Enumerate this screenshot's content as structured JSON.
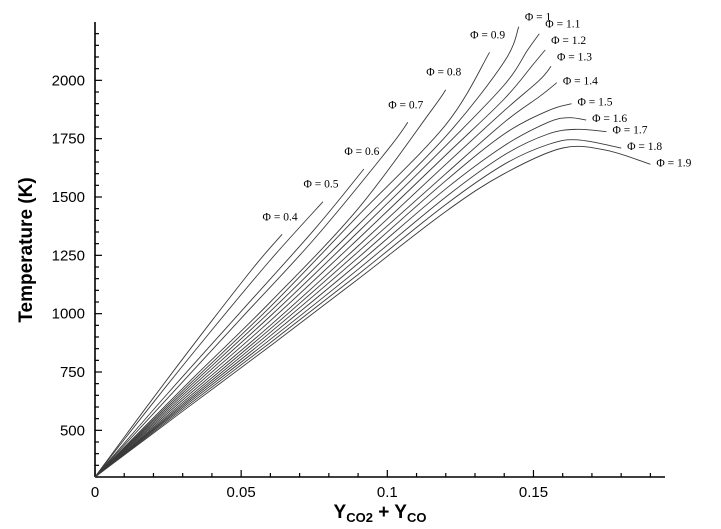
{
  "chart_data": {
    "type": "line",
    "xlabel": "Y",
    "xlabel_sub1": "CO2",
    "xlabel_mid": " + Y",
    "xlabel_sub2": "CO",
    "ylabel": "Temperature (K)",
    "xlim": [
      0,
      0.195
    ],
    "ylim": [
      300,
      2250
    ],
    "x_ticks": [
      0,
      0.05,
      0.1,
      0.15
    ],
    "x_tick_labels": [
      "0",
      "0.05",
      "0.1",
      "0.15"
    ],
    "y_ticks": [
      500,
      750,
      1000,
      1250,
      1500,
      1750,
      2000
    ],
    "y_tick_labels": [
      "500",
      "750",
      "1000",
      "1250",
      "1500",
      "1750",
      "2000"
    ],
    "grid": false,
    "legend": "none",
    "series": [
      {
        "name": "Φ = 0.4",
        "x": [
          0,
          0.02,
          0.04,
          0.055,
          0.064
        ],
        "y": [
          300,
          640,
          970,
          1210,
          1340
        ]
      },
      {
        "name": "Φ = 0.5",
        "x": [
          0,
          0.02,
          0.04,
          0.06,
          0.078
        ],
        "y": [
          300,
          620,
          930,
          1230,
          1480
        ]
      },
      {
        "name": "Φ = 0.6",
        "x": [
          0,
          0.025,
          0.05,
          0.075,
          0.092
        ],
        "y": [
          300,
          660,
          1010,
          1360,
          1620
        ]
      },
      {
        "name": "Φ = 0.7",
        "x": [
          0,
          0.025,
          0.05,
          0.075,
          0.1,
          0.107
        ],
        "y": [
          300,
          640,
          980,
          1320,
          1700,
          1820
        ]
      },
      {
        "name": "Φ = 0.8",
        "x": [
          0,
          0.03,
          0.06,
          0.09,
          0.115,
          0.12
        ],
        "y": [
          300,
          680,
          1050,
          1450,
          1870,
          1960
        ]
      },
      {
        "name": "Φ = 0.9",
        "x": [
          0,
          0.03,
          0.06,
          0.09,
          0.12,
          0.135
        ],
        "y": [
          300,
          670,
          1030,
          1420,
          1810,
          2120
        ]
      },
      {
        "name": "Φ = 1",
        "x": [
          0,
          0.03,
          0.06,
          0.09,
          0.12,
          0.14,
          0.145
        ],
        "y": [
          300,
          660,
          1010,
          1380,
          1760,
          2080,
          2230
        ]
      },
      {
        "name": "Φ = 1.1",
        "x": [
          0,
          0.03,
          0.06,
          0.09,
          0.12,
          0.14,
          0.148,
          0.152
        ],
        "y": [
          300,
          650,
          990,
          1350,
          1720,
          1980,
          2130,
          2200
        ]
      },
      {
        "name": "Φ = 1.2",
        "x": [
          0,
          0.03,
          0.06,
          0.09,
          0.12,
          0.14,
          0.15,
          0.154
        ],
        "y": [
          300,
          640,
          970,
          1320,
          1680,
          1920,
          2070,
          2130
        ]
      },
      {
        "name": "Φ = 1.3",
        "x": [
          0,
          0.03,
          0.06,
          0.09,
          0.12,
          0.14,
          0.152,
          0.156
        ],
        "y": [
          300,
          630,
          950,
          1290,
          1640,
          1870,
          2000,
          2060
        ]
      },
      {
        "name": "Φ = 1.4",
        "x": [
          0,
          0.03,
          0.06,
          0.09,
          0.12,
          0.14,
          0.152,
          0.158
        ],
        "y": [
          300,
          620,
          935,
          1265,
          1600,
          1820,
          1930,
          1990
        ]
      },
      {
        "name": "Φ = 1.5",
        "x": [
          0,
          0.03,
          0.06,
          0.09,
          0.12,
          0.14,
          0.155,
          0.163
        ],
        "y": [
          300,
          612,
          920,
          1240,
          1570,
          1770,
          1870,
          1900
        ]
      },
      {
        "name": "Φ = 1.6",
        "x": [
          0,
          0.03,
          0.06,
          0.09,
          0.12,
          0.14,
          0.155,
          0.162,
          0.168
        ],
        "y": [
          300,
          605,
          905,
          1215,
          1535,
          1720,
          1820,
          1840,
          1830
        ]
      },
      {
        "name": "Φ = 1.7",
        "x": [
          0,
          0.03,
          0.06,
          0.09,
          0.12,
          0.14,
          0.155,
          0.165,
          0.175
        ],
        "y": [
          300,
          598,
          890,
          1190,
          1500,
          1680,
          1770,
          1790,
          1780
        ]
      },
      {
        "name": "Φ = 1.8",
        "x": [
          0,
          0.03,
          0.06,
          0.09,
          0.12,
          0.14,
          0.155,
          0.165,
          0.18
        ],
        "y": [
          300,
          590,
          876,
          1168,
          1468,
          1640,
          1725,
          1745,
          1710
        ]
      },
      {
        "name": "Φ = 1.9",
        "x": [
          0,
          0.03,
          0.06,
          0.09,
          0.12,
          0.14,
          0.16,
          0.175,
          0.19
        ],
        "y": [
          300,
          582,
          862,
          1148,
          1438,
          1600,
          1710,
          1700,
          1640
        ]
      }
    ]
  }
}
